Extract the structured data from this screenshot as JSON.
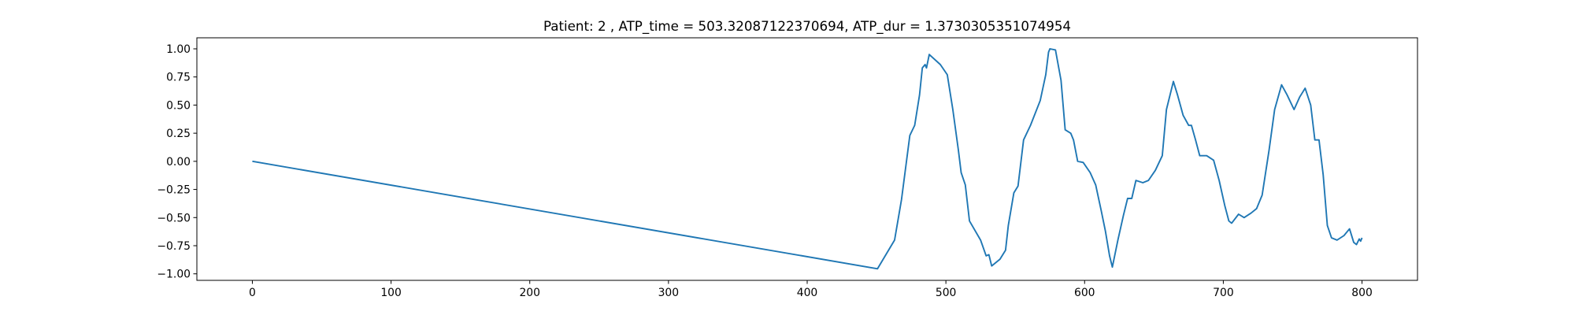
{
  "chart_data": {
    "type": "line",
    "title": "Patient: 2 , ATP_time = 503.32087122370694, ATP_dur = 1.3730305351074954",
    "color": "#1f77b4",
    "x": [
      0,
      450.7,
      463,
      468,
      474,
      477.5,
      481,
      483,
      485,
      486,
      488,
      496,
      501,
      505,
      509,
      511,
      514,
      517,
      525,
      529,
      531,
      533,
      539,
      543,
      545,
      549,
      552,
      556,
      561,
      568,
      572,
      574,
      575,
      579,
      583,
      586,
      590,
      592,
      595,
      599,
      604,
      608,
      612,
      615,
      618,
      620,
      624,
      628,
      631,
      634,
      637,
      642,
      646,
      651,
      656,
      659,
      664,
      667,
      671,
      675,
      677,
      680,
      683,
      688,
      693,
      697,
      701,
      704,
      706,
      711,
      715,
      720,
      724,
      728,
      733,
      737,
      742,
      746,
      751,
      755,
      759,
      763,
      766,
      769,
      772,
      775,
      778,
      782,
      787,
      791,
      794,
      796,
      798,
      799,
      800
    ],
    "values": [
      0,
      -0.955,
      -0.7,
      -0.34,
      0.23,
      0.32,
      0.59,
      0.83,
      0.86,
      0.83,
      0.95,
      0.86,
      0.77,
      0.46,
      0.1,
      -0.1,
      -0.21,
      -0.53,
      -0.7,
      -0.84,
      -0.83,
      -0.93,
      -0.87,
      -0.79,
      -0.57,
      -0.28,
      -0.22,
      0.19,
      0.32,
      0.54,
      0.77,
      0.97,
      1.0,
      0.99,
      0.72,
      0.28,
      0.25,
      0.19,
      0.0,
      -0.01,
      -0.1,
      -0.21,
      -0.44,
      -0.62,
      -0.84,
      -0.94,
      -0.7,
      -0.48,
      -0.33,
      -0.33,
      -0.17,
      -0.19,
      -0.17,
      -0.08,
      0.05,
      0.46,
      0.71,
      0.59,
      0.41,
      0.32,
      0.32,
      0.19,
      0.05,
      0.05,
      0.01,
      -0.17,
      -0.39,
      -0.53,
      -0.55,
      -0.47,
      -0.5,
      -0.46,
      -0.42,
      -0.3,
      0.1,
      0.46,
      0.68,
      0.59,
      0.46,
      0.57,
      0.65,
      0.5,
      0.19,
      0.19,
      -0.12,
      -0.57,
      -0.68,
      -0.7,
      -0.66,
      -0.6,
      -0.72,
      -0.74,
      -0.69,
      -0.71,
      -0.68
    ],
    "xlim": [
      -40,
      840
    ],
    "xticks": [
      0,
      100,
      200,
      300,
      400,
      500,
      600,
      700,
      800
    ],
    "ylim": [
      -1.058,
      1.098
    ],
    "yticks": [
      {
        "value": -1,
        "label": "−1.00"
      },
      {
        "value": -0.75,
        "label": "−0.75"
      },
      {
        "value": -0.5,
        "label": "−0.50"
      },
      {
        "value": -0.25,
        "label": "−0.25"
      },
      {
        "value": 0,
        "label": "0.00"
      },
      {
        "value": 0.25,
        "label": "0.25"
      },
      {
        "value": 0.5,
        "label": "0.50"
      },
      {
        "value": 0.75,
        "label": "0.75"
      },
      {
        "value": 1,
        "label": "1.00"
      }
    ]
  }
}
